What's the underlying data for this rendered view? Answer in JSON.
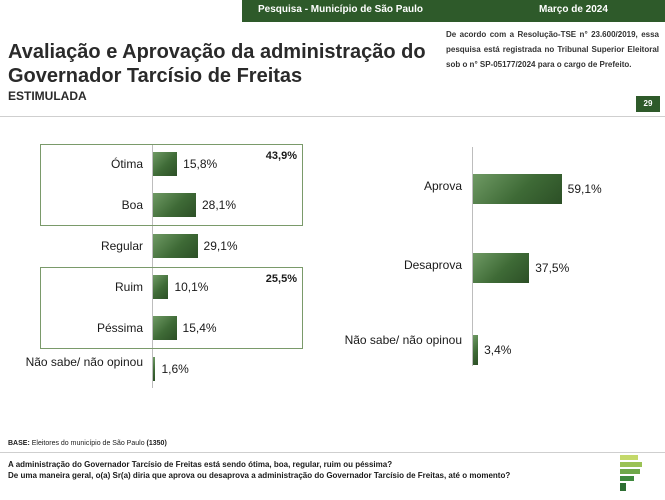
{
  "header": {
    "survey": "Pesquisa - Município de São Paulo",
    "date": "Março de 2024"
  },
  "title": "Avaliação e Aprovação da administração do Governador Tarcísio de Freitas",
  "subtitle": "ESTIMULADA",
  "tse_notice": "De acordo com a Resolução-TSE n° 23.600/2019, essa pesquisa está registrada no Tribunal Superior Eleitoral sob o n° SP-05177/2024 para o cargo de Prefeito.",
  "page_number": "29",
  "base": {
    "label": "BASE:",
    "text": "Eleitores do município de São Paulo",
    "count": "(1350)"
  },
  "questions": {
    "q1": "A administração do Governador Tarcísio de Freitas está sendo ótima, boa, regular, ruim ou péssima?",
    "q2": "De uma maneira geral, o(a) Sr(a) diria que aprova ou desaprova a administração do Governador Tarcísio de Freitas, até o momento?"
  },
  "colors": {
    "brand_green": "#2e5a2a",
    "bar_green": "#3e6a36",
    "box_border": "#7a9a6a"
  },
  "chart_data": [
    {
      "type": "bar",
      "orientation": "horizontal",
      "categories": [
        "Ótima",
        "Boa",
        "Regular",
        "Ruim",
        "Péssima",
        "Não sabe/ não opinou"
      ],
      "values": [
        15.8,
        28.1,
        29.1,
        10.1,
        15.4,
        1.6
      ],
      "value_labels": [
        "15,8%",
        "28,1%",
        "29,1%",
        "10,1%",
        "15,4%",
        "1,6%"
      ],
      "groups": [
        {
          "categories": [
            "Ótima",
            "Boa"
          ],
          "total": "43,9%"
        },
        {
          "categories": [
            "Ruim",
            "Péssima"
          ],
          "total": "25,5%"
        }
      ],
      "xlim": [
        0,
        65
      ],
      "grid": false
    },
    {
      "type": "bar",
      "orientation": "horizontal",
      "categories": [
        "Aprova",
        "Desaprova",
        "Não sabe/ não opinou"
      ],
      "values": [
        59.1,
        37.5,
        3.4
      ],
      "value_labels": [
        "59,1%",
        "37,5%",
        "3,4%"
      ],
      "xlim": [
        0,
        65
      ],
      "grid": false
    }
  ]
}
